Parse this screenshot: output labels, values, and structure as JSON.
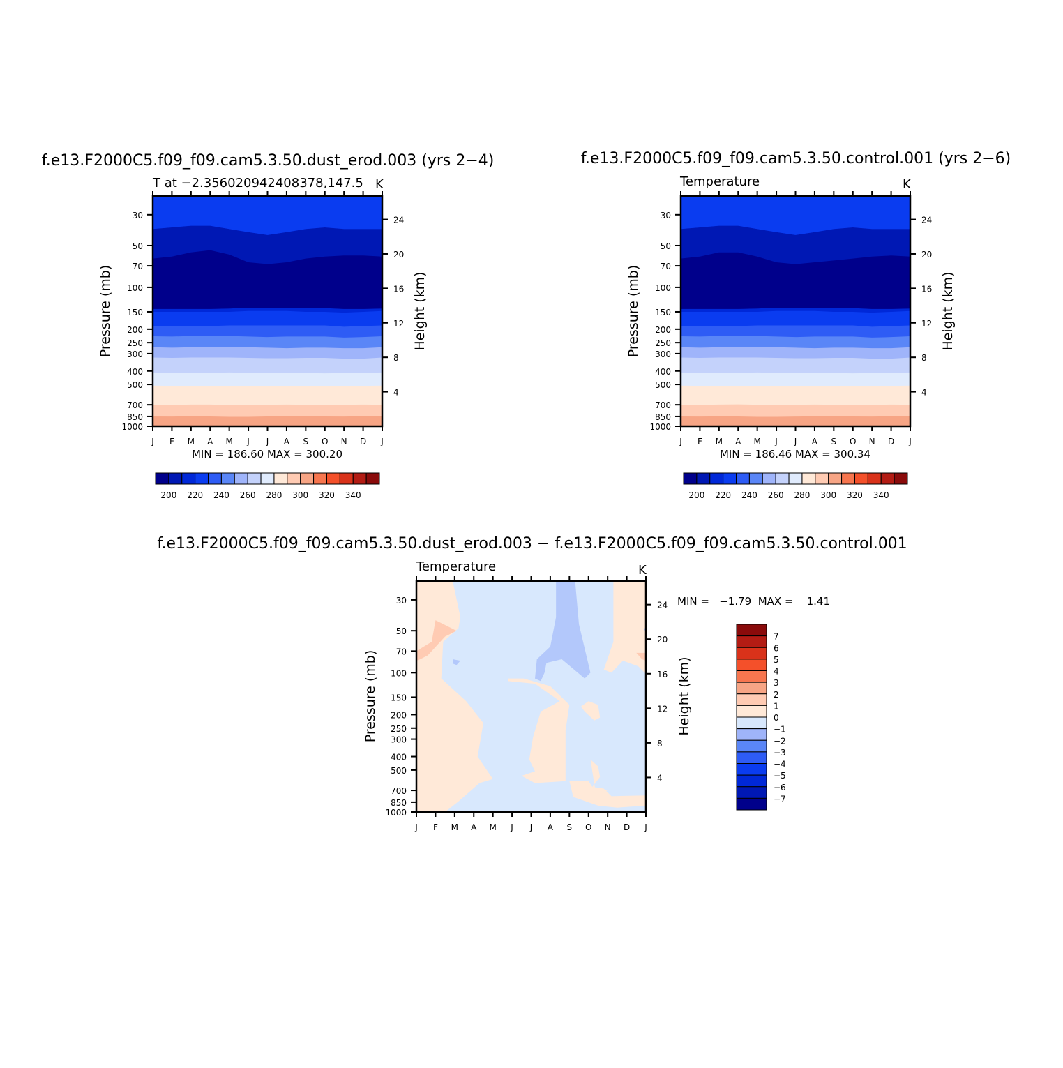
{
  "colors": {
    "abs_scale": [
      "#00008b",
      "#0018b4",
      "#0028d8",
      "#0a3cf0",
      "#2e5cf5",
      "#5a86f7",
      "#9fb4fa",
      "#c4d2fb",
      "#e0ebfd",
      "#ffe9d8",
      "#ffcbb3",
      "#f7a585",
      "#f7764f",
      "#f4502a",
      "#d9321a",
      "#b31c14",
      "#8a0b0b"
    ],
    "diff_scale": [
      "#00008b",
      "#0018b4",
      "#0028d8",
      "#0a3cf0",
      "#2e5cf5",
      "#5a86f7",
      "#9fb4fa",
      "#d8e8fd",
      "#ffe9d8",
      "#ffcbb3",
      "#f7a585",
      "#f7764f",
      "#f4502a",
      "#d9321a",
      "#b31c14",
      "#8a0b0b"
    ]
  },
  "chart_data": [
    {
      "id": "dust_erod",
      "type": "contour",
      "title": "f.e13.F2000C5.f09_f09.cam5.3.50.dust_erod.003 (yrs 2−4)",
      "subtitle_left": "T at −2.356020942408378,147.5",
      "subtitle_right": "K",
      "ylabel": "Pressure (mb)",
      "ylabel_right": "Height (km)",
      "x_ticks": [
        "J",
        "F",
        "M",
        "A",
        "M",
        "J",
        "J",
        "A",
        "S",
        "O",
        "N",
        "D",
        "J"
      ],
      "y_ticks": [
        30,
        50,
        70,
        100,
        150,
        200,
        250,
        300,
        400,
        500,
        700,
        850,
        1000
      ],
      "y_ticks_right": [
        24,
        20,
        16,
        12,
        8,
        4
      ],
      "ylim": [
        1000,
        22
      ],
      "min_max": "MIN = 186.60 MAX = 300.20",
      "colorbar_labels": [
        "200",
        "220",
        "240",
        "260",
        "280",
        "300",
        "320",
        "340"
      ],
      "band_levels": [
        1000,
        862,
        700,
        520,
        414,
        331,
        281,
        240,
        202,
        178,
        155
      ],
      "boundaries": [
        {
          "level_mb": 850,
          "color_below": "#f7a585",
          "color_above": "#ffcbb3",
          "values": [
            850,
            852,
            848,
            850,
            855,
            856,
            850,
            848,
            846,
            850,
            852,
            848,
            850
          ]
        },
        {
          "level_mb": 700,
          "color_above": "#ffe9d8",
          "values": [
            700,
            702,
            698,
            698,
            702,
            704,
            700,
            698,
            700,
            702,
            700,
            698,
            700
          ]
        },
        {
          "level_mb": 510,
          "color_above": "#e0ebfd",
          "values": [
            510,
            512,
            512,
            512,
            512,
            512,
            512,
            512,
            512,
            512,
            515,
            512,
            510
          ]
        },
        {
          "level_mb": 410,
          "color_above": "#c4d2fb",
          "values": [
            410,
            412,
            412,
            412,
            410,
            412,
            414,
            414,
            414,
            416,
            414,
            412,
            410
          ]
        },
        {
          "level_mb": 320,
          "color_above": "#9fb4fa",
          "values": [
            320,
            322,
            320,
            320,
            320,
            322,
            324,
            324,
            322,
            322,
            326,
            326,
            320
          ]
        },
        {
          "level_mb": 270,
          "color_above": "#5a86f7",
          "values": [
            270,
            272,
            270,
            270,
            270,
            270,
            272,
            274,
            272,
            272,
            274,
            274,
            270
          ]
        },
        {
          "level_mb": 225,
          "color_above": "#2e5cf5",
          "values": [
            225,
            226,
            224,
            224,
            224,
            226,
            228,
            226,
            226,
            226,
            230,
            228,
            225
          ]
        },
        {
          "level_mb": 190,
          "color_above": "#0a3cf0",
          "values": [
            190,
            190,
            190,
            190,
            188,
            188,
            188,
            188,
            188,
            188,
            192,
            190,
            188
          ]
        },
        {
          "level_mb": 150,
          "color_above": "#0028d8",
          "values": [
            150,
            150,
            150,
            150,
            150,
            148,
            148,
            148,
            150,
            150,
            152,
            150,
            148
          ]
        },
        {
          "level_mb": 145,
          "color_above": "#0018b4",
          "values": [
            143,
            143,
            143,
            143,
            142,
            140,
            140,
            140,
            141,
            141,
            143,
            143,
            142
          ]
        },
        {
          "level_mb": 62,
          "color_above": "#0018b4",
          "values": [
            62,
            60,
            56,
            54,
            58,
            66,
            68,
            66,
            62,
            60,
            59,
            59,
            60
          ]
        },
        {
          "level_mb": 38,
          "color_above": "#0028d8",
          "values": [
            38,
            37,
            36,
            36,
            38,
            40,
            42,
            40,
            38,
            37,
            38,
            38,
            38
          ]
        }
      ]
    },
    {
      "id": "control",
      "type": "contour",
      "title": "f.e13.F2000C5.f09_f09.cam5.3.50.control.001 (yrs 2−6)",
      "subtitle_left": "Temperature",
      "subtitle_right": "K",
      "ylabel": "Pressure (mb)",
      "ylabel_right": "Height (km)",
      "x_ticks": [
        "J",
        "F",
        "M",
        "A",
        "M",
        "J",
        "J",
        "A",
        "S",
        "O",
        "N",
        "D",
        "J"
      ],
      "y_ticks": [
        30,
        50,
        70,
        100,
        150,
        200,
        250,
        300,
        400,
        500,
        700,
        850,
        1000
      ],
      "y_ticks_right": [
        24,
        20,
        16,
        12,
        8,
        4
      ],
      "ylim": [
        1000,
        22
      ],
      "min_max": "MIN = 186.46 MAX = 300.34",
      "colorbar_labels": [
        "200",
        "220",
        "240",
        "260",
        "280",
        "300",
        "320",
        "340"
      ],
      "boundaries": [
        {
          "level_mb": 850,
          "color_below": "#f7a585",
          "color_above": "#ffcbb3",
          "values": [
            850,
            852,
            848,
            850,
            855,
            856,
            852,
            848,
            846,
            850,
            852,
            848,
            850
          ]
        },
        {
          "level_mb": 700,
          "color_above": "#ffe9d8",
          "values": [
            700,
            702,
            698,
            696,
            700,
            702,
            700,
            698,
            700,
            702,
            700,
            698,
            700
          ]
        },
        {
          "level_mb": 510,
          "color_above": "#e0ebfd",
          "values": [
            510,
            512,
            512,
            512,
            512,
            512,
            512,
            512,
            512,
            512,
            514,
            512,
            510
          ]
        },
        {
          "level_mb": 410,
          "color_above": "#c4d2fb",
          "values": [
            410,
            412,
            412,
            412,
            410,
            412,
            414,
            414,
            414,
            416,
            414,
            412,
            410
          ]
        },
        {
          "level_mb": 320,
          "color_above": "#9fb4fa",
          "values": [
            320,
            322,
            320,
            320,
            320,
            322,
            324,
            324,
            322,
            322,
            326,
            326,
            320
          ]
        },
        {
          "level_mb": 270,
          "color_above": "#5a86f7",
          "values": [
            270,
            272,
            270,
            270,
            270,
            270,
            272,
            274,
            272,
            272,
            274,
            274,
            270
          ]
        },
        {
          "level_mb": 225,
          "color_above": "#2e5cf5",
          "values": [
            225,
            226,
            224,
            224,
            224,
            226,
            228,
            226,
            226,
            226,
            230,
            228,
            225
          ]
        },
        {
          "level_mb": 190,
          "color_above": "#0a3cf0",
          "values": [
            190,
            190,
            190,
            190,
            188,
            188,
            188,
            188,
            188,
            188,
            192,
            190,
            188
          ]
        },
        {
          "level_mb": 150,
          "color_above": "#0028d8",
          "values": [
            150,
            150,
            150,
            150,
            150,
            148,
            148,
            148,
            150,
            150,
            152,
            150,
            148
          ]
        },
        {
          "level_mb": 145,
          "color_above": "#0018b4",
          "values": [
            143,
            143,
            143,
            143,
            142,
            140,
            140,
            140,
            141,
            141,
            143,
            143,
            142
          ]
        },
        {
          "level_mb": 62,
          "color_above": "#0018b4",
          "values": [
            62,
            60,
            56,
            56,
            60,
            66,
            68,
            66,
            64,
            62,
            60,
            59,
            60
          ]
        },
        {
          "level_mb": 38,
          "color_above": "#0028d8",
          "values": [
            38,
            37,
            36,
            36,
            38,
            40,
            42,
            40,
            38,
            37,
            38,
            38,
            38
          ]
        }
      ]
    },
    {
      "id": "difference",
      "type": "contour",
      "title": "f.e13.F2000C5.f09_f09.cam5.3.50.dust_erod.003 − f.e13.F2000C5.f09_f09.cam5.3.50.control.001",
      "subtitle_left": "Temperature",
      "subtitle_right": "K",
      "ylabel": "Pressure (mb)",
      "ylabel_right": "Height (km)",
      "x_ticks": [
        "J",
        "F",
        "M",
        "A",
        "M",
        "J",
        "J",
        "A",
        "S",
        "O",
        "N",
        "D",
        "J"
      ],
      "y_ticks": [
        30,
        50,
        70,
        100,
        150,
        200,
        250,
        300,
        400,
        500,
        700,
        850,
        1000
      ],
      "y_ticks_right": [
        24,
        20,
        16,
        12,
        8,
        4
      ],
      "ylim": [
        1000,
        22
      ],
      "min_max": "MIN =   −1.79  MAX =    1.41",
      "colorbar_labels": [
        "7",
        "6",
        "5",
        "4",
        "3",
        "2",
        "1",
        "0",
        "−1",
        "−2",
        "−3",
        "−4",
        "−5",
        "−6",
        "−7"
      ],
      "background_value": "0 to −1",
      "regions": [
        {
          "value": "0 to 1",
          "color": "#ffe9d8",
          "points": [
            [
              0,
              22
            ],
            [
              1.9,
              22
            ],
            [
              2.3,
              40
            ],
            [
              2.2,
              48
            ],
            [
              1.4,
              60
            ],
            [
              1.3,
              110
            ],
            [
              2.6,
              160
            ],
            [
              3.5,
              230
            ],
            [
              3.2,
              400
            ],
            [
              4.0,
              580
            ],
            [
              3.3,
              620
            ],
            [
              2.2,
              840
            ],
            [
              1.5,
              1000
            ],
            [
              0,
              1000
            ]
          ]
        },
        {
          "value": "0 to 1",
          "color": "#ffe9d8",
          "points": [
            [
              4.8,
              115
            ],
            [
              6.2,
              120
            ],
            [
              7.5,
              160
            ],
            [
              6.5,
              190
            ],
            [
              6.1,
              290
            ],
            [
              5.9,
              420
            ],
            [
              6.2,
              510
            ],
            [
              5.5,
              550
            ],
            [
              6.2,
              620
            ],
            [
              7.8,
              600
            ],
            [
              7.8,
              260
            ],
            [
              8.0,
              170
            ],
            [
              7.0,
              125
            ],
            [
              5.6,
              110
            ],
            [
              4.8,
              110
            ]
          ]
        },
        {
          "value": "0 to 1",
          "color": "#ffe9d8",
          "points": [
            [
              9.1,
              420
            ],
            [
              9.5,
              470
            ],
            [
              9.6,
              560
            ],
            [
              9.2,
              660
            ],
            [
              10.0,
              700
            ],
            [
              9.2,
              760
            ],
            [
              9.4,
              760
            ],
            [
              9.1,
              420
            ]
          ]
        },
        {
          "value": "0 to 1",
          "color": "#ffe9d8",
          "points": [
            [
              10.3,
              22
            ],
            [
              12,
              22
            ],
            [
              12,
              102
            ],
            [
              11.6,
              90
            ],
            [
              10.8,
              82
            ],
            [
              10.2,
              100
            ],
            [
              9.8,
              95
            ],
            [
              10.3,
              60
            ],
            [
              10.3,
              22
            ]
          ]
        },
        {
          "value": "0 to 1",
          "color": "#ffe9d8",
          "points": [
            [
              9.0,
              160
            ],
            [
              9.5,
              170
            ],
            [
              9.6,
              210
            ],
            [
              9.3,
              220
            ],
            [
              8.8,
              190
            ],
            [
              8.6,
              175
            ],
            [
              9.0,
              160
            ]
          ]
        },
        {
          "value": "0 to 1",
          "color": "#ffe9d8",
          "points": [
            [
              8.0,
              600
            ],
            [
              9.0,
              600
            ],
            [
              9.2,
              660
            ],
            [
              9.8,
              680
            ],
            [
              10.2,
              770
            ],
            [
              12,
              760
            ],
            [
              12,
              900
            ],
            [
              10.5,
              930
            ],
            [
              9.5,
              900
            ],
            [
              8.2,
              780
            ]
          ]
        },
        {
          "value": "1 to 2",
          "color": "#ffcbb3",
          "points": [
            [
              1.0,
              42
            ],
            [
              2.1,
              50
            ],
            [
              1.5,
              55
            ],
            [
              0.6,
              75
            ],
            [
              0.2,
              80
            ],
            [
              0,
              82
            ],
            [
              0,
              70
            ],
            [
              0.8,
              60
            ]
          ]
        },
        {
          "value": "1 to 2",
          "color": "#ffcbb3",
          "points": [
            [
              11.5,
              72
            ],
            [
              12,
              72
            ],
            [
              12,
              82
            ],
            [
              11.8,
              80
            ]
          ]
        },
        {
          "value": "−1 to −2",
          "color": "#b3c8fb",
          "points": [
            [
              7.3,
              22
            ],
            [
              8.3,
              22
            ],
            [
              8.5,
              45
            ],
            [
              9.1,
              100
            ],
            [
              8.8,
              110
            ],
            [
              7.6,
              80
            ],
            [
              6.8,
              85
            ],
            [
              6.7,
              100
            ],
            [
              6.5,
              115
            ],
            [
              6.2,
              110
            ],
            [
              6.3,
              80
            ],
            [
              7.0,
              65
            ],
            [
              7.3,
              40
            ]
          ]
        },
        {
          "value": "−1 to −2",
          "color": "#b3c8fb",
          "points": [
            [
              1.9,
              80
            ],
            [
              2.3,
              82
            ],
            [
              2.1,
              88
            ],
            [
              1.9,
              86
            ]
          ]
        },
        {
          "value": "−1 to −2",
          "color": "#b3c8fb",
          "points": [
            [
              11.9,
              48
            ],
            [
              12,
              48
            ],
            [
              12,
              52
            ]
          ]
        }
      ]
    }
  ]
}
